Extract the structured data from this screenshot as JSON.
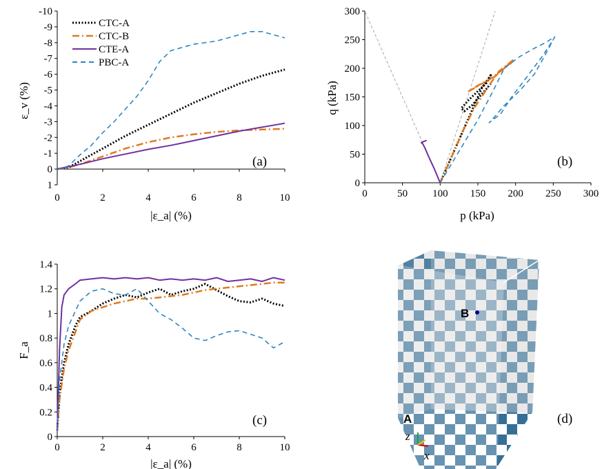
{
  "panels": {
    "a": {
      "tag": "(a)",
      "ylabel": "ε_v (%)",
      "xlabel": "|ε_a| (%)",
      "xlim": [
        0,
        10
      ],
      "ylim": [
        1,
        -10
      ],
      "xticks": [
        0,
        2,
        4,
        6,
        8,
        10
      ],
      "xtick_labels": [
        "0",
        "2",
        "4",
        "6",
        "8",
        "10"
      ],
      "yticks": [
        -10,
        -9,
        -8,
        -7,
        -6,
        -5,
        -4,
        -3,
        -2,
        -1,
        0,
        1
      ],
      "ytick_labels": [
        "-10",
        "-9",
        "-8",
        "-7",
        "-6",
        "-5",
        "-4",
        "-3",
        "-2",
        "-1",
        "0",
        "1"
      ]
    },
    "b": {
      "tag": "(b)",
      "ylabel": "q (kPa)",
      "xlabel": "p (kPa)",
      "xlim": [
        0,
        300
      ],
      "ylim": [
        0,
        300
      ],
      "xticks": [
        0,
        50,
        100,
        150,
        200,
        250,
        300
      ],
      "xtick_labels": [
        "0",
        "50",
        "100",
        "150",
        "200",
        "250",
        "300"
      ],
      "yticks": [
        0,
        50,
        100,
        150,
        200,
        250,
        300
      ],
      "ytick_labels": [
        "0",
        "50",
        "100",
        "150",
        "200",
        "250",
        "300"
      ]
    },
    "c": {
      "tag": "(c)",
      "ylabel": "F_a",
      "xlabel": "|ε_a| (%)",
      "xlim": [
        0,
        10
      ],
      "ylim": [
        0,
        1.4
      ],
      "xticks": [
        0,
        2,
        4,
        6,
        8,
        10
      ],
      "xtick_labels": [
        "0",
        "2",
        "4",
        "6",
        "8",
        "10"
      ],
      "yticks": [
        0,
        0.2,
        0.4,
        0.6,
        0.8,
        1,
        1.2,
        1.4
      ],
      "ytick_labels": [
        "0",
        "0.2",
        "0.4",
        "0.6",
        "0.8",
        "1",
        "1.2",
        "1.4"
      ]
    },
    "d": {
      "tag": "(d)",
      "point_a": "A",
      "point_b": "B",
      "axis_z": "z",
      "axis_x": "x"
    }
  },
  "legend": [
    "CTC-A",
    "CTC-B",
    "CTE-A",
    "PBC-A"
  ],
  "colors": {
    "CTC-A": "#000000",
    "CTC-B": "#e07a1f",
    "CTE-A": "#7030a0",
    "PBC-A": "#2e86c1",
    "failure_line": "#a6a6a6",
    "box_blue": "#1f5f8b",
    "marker_a": "#e00000",
    "marker_b": "#00008b"
  },
  "chart_data": [
    {
      "type": "line",
      "panel": "a",
      "xlabel": "|ε_a| (%)",
      "ylabel": "ε_v (%)",
      "xlim": [
        0,
        10
      ],
      "ylim": [
        1,
        -10
      ],
      "legend_position": "top-left",
      "series": [
        {
          "name": "CTC-A",
          "x": [
            0,
            0.5,
            1,
            2,
            3,
            4,
            5,
            6,
            7,
            8,
            9,
            10
          ],
          "y": [
            0,
            -0.1,
            -0.5,
            -1.3,
            -2.1,
            -2.8,
            -3.5,
            -4.2,
            -4.8,
            -5.4,
            -5.9,
            -6.3
          ]
        },
        {
          "name": "CTC-B",
          "x": [
            0,
            0.5,
            1,
            2,
            3,
            4,
            5,
            6,
            7,
            8,
            9,
            10
          ],
          "y": [
            0,
            -0.1,
            -0.3,
            -0.8,
            -1.3,
            -1.7,
            -2.0,
            -2.2,
            -2.35,
            -2.45,
            -2.5,
            -2.55
          ]
        },
        {
          "name": "CTE-A",
          "x": [
            0,
            0.5,
            1,
            2,
            3,
            4,
            5,
            6,
            7,
            8,
            9,
            10
          ],
          "y": [
            0,
            -0.15,
            -0.3,
            -0.65,
            -0.95,
            -1.25,
            -1.5,
            -1.8,
            -2.1,
            -2.4,
            -2.65,
            -2.9
          ]
        },
        {
          "name": "PBC-A",
          "x": [
            0,
            0.5,
            1,
            1.5,
            2,
            2.5,
            3,
            3.5,
            4,
            4.5,
            5,
            6,
            7,
            8,
            8.5,
            9,
            10
          ],
          "y": [
            0.05,
            -0.2,
            -0.9,
            -1.5,
            -2.3,
            -3.0,
            -3.8,
            -4.6,
            -5.6,
            -6.8,
            -7.5,
            -7.9,
            -8.1,
            -8.5,
            -8.7,
            -8.7,
            -8.3
          ]
        }
      ]
    },
    {
      "type": "line",
      "panel": "b",
      "xlabel": "p (kPa)",
      "ylabel": "q (kPa)",
      "xlim": [
        0,
        300
      ],
      "ylim": [
        0,
        300
      ],
      "series": [
        {
          "name": "failure-line-compression",
          "x": [
            100,
            173
          ],
          "y": [
            0,
            300
          ]
        },
        {
          "name": "failure-line-extension",
          "x": [
            100,
            0
          ],
          "y": [
            0,
            300
          ]
        },
        {
          "name": "CTC-A",
          "x": [
            100,
            120,
            140,
            155,
            163,
            168,
            162,
            150,
            138,
            128,
            132,
            142,
            152,
            162,
            168
          ],
          "y": [
            0,
            60,
            120,
            165,
            180,
            190,
            175,
            160,
            145,
            130,
            125,
            135,
            150,
            165,
            175
          ]
        },
        {
          "name": "CTC-B",
          "x": [
            100,
            115,
            130,
            145,
            160,
            170,
            178,
            188,
            197,
            185,
            172,
            158,
            145,
            138,
            150,
            165,
            180,
            195
          ],
          "y": [
            0,
            45,
            90,
            130,
            160,
            180,
            195,
            205,
            215,
            200,
            185,
            175,
            165,
            160,
            170,
            180,
            195,
            210
          ]
        },
        {
          "name": "CTE-A",
          "x": [
            100,
            92,
            85,
            80,
            77,
            75,
            78,
            82
          ],
          "y": [
            0,
            25,
            45,
            60,
            68,
            70,
            72,
            74
          ]
        },
        {
          "name": "PBC-A",
          "x": [
            100,
            125,
            150,
            170,
            185,
            205,
            225,
            240,
            252,
            240,
            225,
            205,
            185,
            172,
            165,
            180,
            195,
            215,
            235,
            250
          ],
          "y": [
            0,
            55,
            110,
            160,
            200,
            220,
            235,
            245,
            255,
            225,
            190,
            160,
            135,
            115,
            105,
            120,
            150,
            185,
            220,
            250
          ]
        }
      ]
    },
    {
      "type": "line",
      "panel": "c",
      "xlabel": "|ε_a| (%)",
      "ylabel": "F_a",
      "xlim": [
        0,
        10
      ],
      "ylim": [
        0,
        1.4
      ],
      "series": [
        {
          "name": "CTC-A",
          "x": [
            0,
            0.1,
            0.3,
            0.5,
            0.8,
            1,
            1.5,
            2,
            2.5,
            3,
            3.5,
            4,
            4.5,
            5,
            5.5,
            6,
            6.5,
            7,
            7.5,
            8,
            8.5,
            9,
            9.5,
            10
          ],
          "y": [
            0.05,
            0.35,
            0.6,
            0.75,
            0.9,
            0.97,
            1.02,
            1.08,
            1.12,
            1.15,
            1.13,
            1.17,
            1.2,
            1.15,
            1.18,
            1.2,
            1.24,
            1.19,
            1.14,
            1.1,
            1.09,
            1.12,
            1.08,
            1.06
          ]
        },
        {
          "name": "CTC-B",
          "x": [
            0,
            0.1,
            0.3,
            0.5,
            0.8,
            1,
            1.5,
            2,
            2.5,
            3,
            3.5,
            4,
            4.5,
            5,
            5.5,
            6,
            6.5,
            7,
            7.5,
            8,
            8.5,
            9,
            9.5,
            10
          ],
          "y": [
            0.05,
            0.3,
            0.55,
            0.7,
            0.85,
            0.95,
            1.02,
            1.05,
            1.08,
            1.1,
            1.12,
            1.12,
            1.13,
            1.14,
            1.15,
            1.17,
            1.19,
            1.2,
            1.21,
            1.22,
            1.23,
            1.24,
            1.25,
            1.25
          ]
        },
        {
          "name": "CTE-A",
          "x": [
            0,
            0.1,
            0.2,
            0.3,
            0.5,
            0.8,
            1,
            1.5,
            2,
            2.5,
            3,
            3.5,
            4,
            4.5,
            5,
            5.5,
            6,
            6.5,
            7,
            7.5,
            8,
            8.5,
            9,
            9.5,
            10
          ],
          "y": [
            0.05,
            0.7,
            1.05,
            1.15,
            1.2,
            1.24,
            1.27,
            1.28,
            1.29,
            1.28,
            1.29,
            1.28,
            1.29,
            1.27,
            1.28,
            1.27,
            1.28,
            1.27,
            1.29,
            1.26,
            1.27,
            1.28,
            1.26,
            1.29,
            1.27
          ]
        },
        {
          "name": "PBC-A",
          "x": [
            0,
            0.1,
            0.3,
            0.5,
            0.8,
            1,
            1.5,
            2,
            2.5,
            3,
            3.5,
            4,
            4.5,
            5,
            5.5,
            6,
            6.5,
            7,
            7.5,
            8,
            8.5,
            9,
            9.5,
            10
          ],
          "y": [
            0.05,
            0.45,
            0.75,
            0.9,
            1.02,
            1.1,
            1.18,
            1.2,
            1.16,
            1.15,
            1.2,
            1.1,
            1.0,
            0.95,
            0.88,
            0.8,
            0.78,
            0.82,
            0.85,
            0.86,
            0.83,
            0.8,
            0.72,
            0.77
          ]
        }
      ]
    }
  ]
}
